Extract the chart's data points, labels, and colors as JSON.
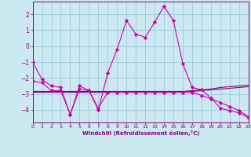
{
  "x": [
    0,
    1,
    2,
    3,
    4,
    5,
    6,
    7,
    8,
    9,
    10,
    11,
    12,
    13,
    14,
    15,
    16,
    17,
    18,
    19,
    20,
    21,
    22,
    23
  ],
  "line1": [
    -1.0,
    -2.1,
    -2.5,
    -2.6,
    -4.3,
    -2.5,
    -2.8,
    -4.0,
    -1.7,
    -0.2,
    1.6,
    0.75,
    0.55,
    1.5,
    2.5,
    1.6,
    -1.1,
    -2.6,
    -2.75,
    -3.25,
    -3.9,
    -4.05,
    -4.2,
    -4.5
  ],
  "line2": [
    -2.9,
    -2.9,
    -2.9,
    -2.9,
    -2.9,
    -2.9,
    -2.9,
    -2.9,
    -2.9,
    -2.9,
    -2.9,
    -2.9,
    -2.9,
    -2.9,
    -2.9,
    -2.9,
    -2.9,
    -2.85,
    -2.8,
    -2.75,
    -2.7,
    -2.65,
    -2.6,
    -2.55
  ],
  "line3": [
    -2.85,
    -2.85,
    -2.85,
    -2.85,
    -2.85,
    -2.85,
    -2.85,
    -2.85,
    -2.85,
    -2.85,
    -2.85,
    -2.85,
    -2.85,
    -2.85,
    -2.85,
    -2.85,
    -2.85,
    -2.8,
    -2.75,
    -2.7,
    -2.6,
    -2.55,
    -2.5,
    -2.45
  ],
  "line4": [
    -2.2,
    -2.3,
    -2.8,
    -2.8,
    -4.3,
    -2.7,
    -2.8,
    -3.9,
    -2.9,
    -2.9,
    -2.9,
    -2.9,
    -2.9,
    -2.9,
    -2.9,
    -2.9,
    -2.9,
    -2.9,
    -3.1,
    -3.3,
    -3.55,
    -3.8,
    -4.05,
    -4.45
  ],
  "bg_color": "#cce8f0",
  "grid_color": "#99ccd9",
  "line_color": "#cc00aa",
  "line_color_dark": "#880077",
  "xlabel": "Windchill (Refroidissement éolien,°C)",
  "ylim": [
    -4.8,
    2.8
  ],
  "xlim": [
    0,
    23
  ],
  "yticks": [
    -4,
    -3,
    -2,
    -1,
    0,
    1,
    2
  ],
  "xticks": [
    0,
    1,
    2,
    3,
    4,
    5,
    6,
    7,
    8,
    9,
    10,
    11,
    12,
    13,
    14,
    15,
    16,
    17,
    18,
    19,
    20,
    21,
    22,
    23
  ]
}
